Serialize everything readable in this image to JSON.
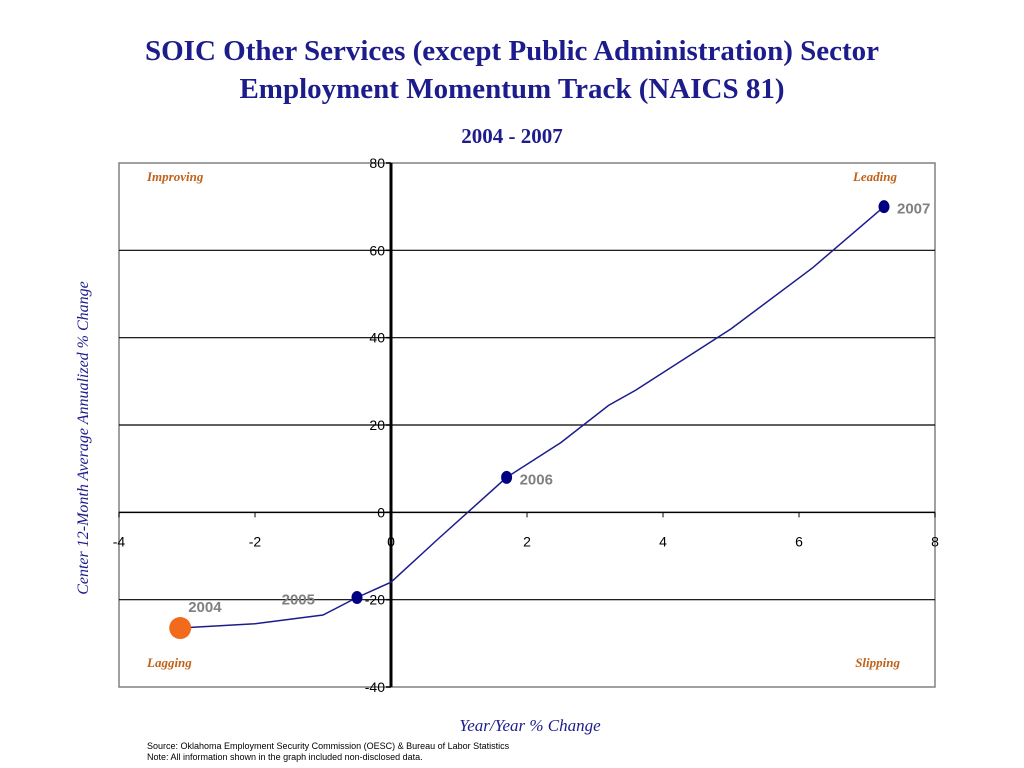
{
  "title_line1": "SOIC Other Services (except Public Administration) Sector",
  "title_line2": "Employment Momentum Track (NAICS 81)",
  "subtitle": "2004 - 2007",
  "ylabel": "Center 12-Month Average Annualized % Change",
  "xlabel": "Year/Year % Change",
  "source_line1": "Source:  Oklahoma Employment Security Commission (OESC) & Bureau of Labor Statistics",
  "source_line2": "Note: All information shown in the graph included non-disclosed data.",
  "colors": {
    "title": "#1c1c8c",
    "line": "#1c1c8c",
    "marker": "#000080",
    "start_marker": "#f26b1d",
    "quadrant_label": "#c0621a",
    "point_label": "#808080"
  },
  "chart_data": {
    "type": "line",
    "xlim": [
      -4,
      8
    ],
    "ylim": [
      -40,
      80
    ],
    "x_ticks": [
      "-4",
      "-2",
      "0",
      "2",
      "4",
      "6",
      "8"
    ],
    "y_ticks": [
      "80",
      "60",
      "40",
      "20",
      "0",
      "-20",
      "-40"
    ],
    "grid": true,
    "quadrants": [
      "Improving",
      "Leading",
      "Lagging",
      "Slipping"
    ],
    "line_path": [
      {
        "x": -3.1,
        "y": -26.5
      },
      {
        "x": -2.0,
        "y": -25.5
      },
      {
        "x": -1.0,
        "y": -23.5
      },
      {
        "x": -0.5,
        "y": -19.5
      },
      {
        "x": 0.0,
        "y": -16
      },
      {
        "x": 0.7,
        "y": -6
      },
      {
        "x": 1.7,
        "y": 8
      },
      {
        "x": 2.5,
        "y": 16
      },
      {
        "x": 3.2,
        "y": 24.5
      },
      {
        "x": 3.6,
        "y": 28
      },
      {
        "x": 4.3,
        "y": 35
      },
      {
        "x": 5.0,
        "y": 42
      },
      {
        "x": 6.2,
        "y": 56
      },
      {
        "x": 7.25,
        "y": 70
      }
    ],
    "points": [
      {
        "label": "2004",
        "x": -3.1,
        "y": -26.5
      },
      {
        "label": "2005",
        "x": -0.5,
        "y": -19.5
      },
      {
        "label": "2006",
        "x": 1.7,
        "y": 8
      },
      {
        "label": "2007",
        "x": 7.25,
        "y": 70
      }
    ]
  }
}
